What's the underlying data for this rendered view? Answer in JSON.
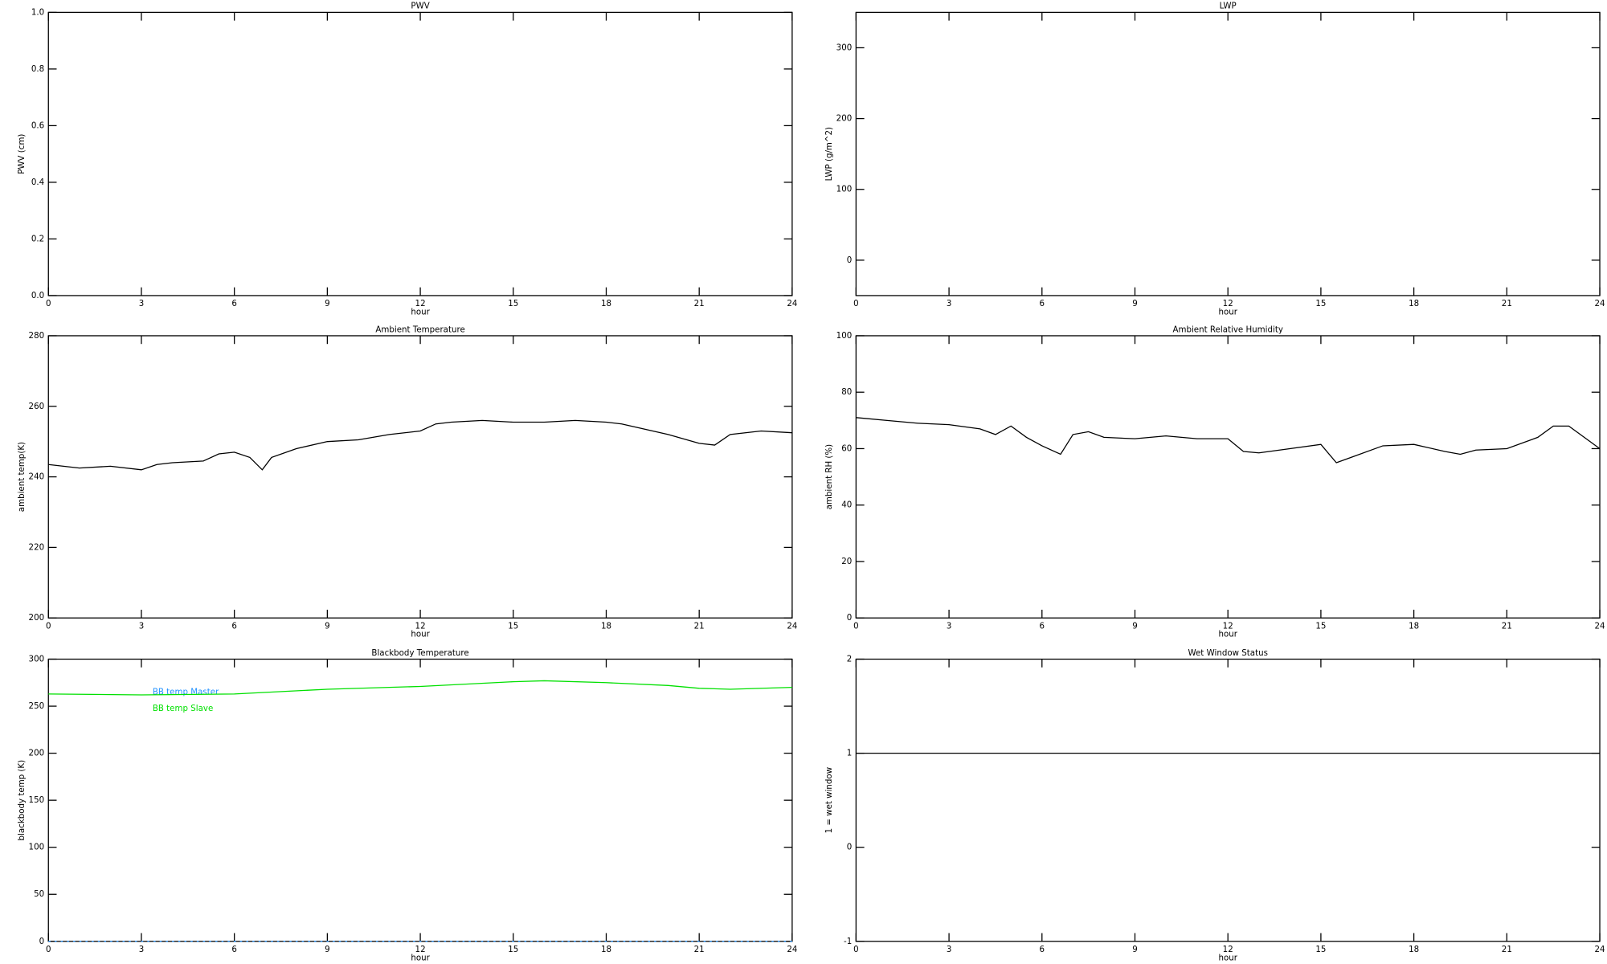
{
  "chart_data": [
    {
      "type": "line",
      "title": "PWV",
      "xlabel": "hour",
      "ylabel": "PWV (cm)",
      "xlim": [
        0,
        24
      ],
      "xticks": [
        0,
        3,
        6,
        9,
        12,
        15,
        18,
        21,
        24
      ],
      "ylim": [
        0,
        1
      ],
      "yticks": [
        {
          "value": 0,
          "label": "0.0"
        },
        {
          "value": 0.2,
          "label": "0.2"
        },
        {
          "value": 0.4,
          "label": "0.4"
        },
        {
          "value": 0.6,
          "label": "0.6"
        },
        {
          "value": 0.8,
          "label": "0.8"
        },
        {
          "value": 1,
          "label": "1.0"
        }
      ],
      "x": [],
      "series": []
    },
    {
      "type": "line",
      "title": "LWP",
      "xlabel": "hour",
      "ylabel": "LWP (g/m^2)",
      "xlim": [
        0,
        24
      ],
      "xticks": [
        0,
        3,
        6,
        9,
        12,
        15,
        18,
        21,
        24
      ],
      "ylim": [
        -50,
        350
      ],
      "yticks": [
        0,
        100,
        200,
        300
      ],
      "x": [],
      "series": []
    },
    {
      "type": "line",
      "title": "Ambient Temperature",
      "xlabel": "hour",
      "ylabel": "ambient temp(K)",
      "xlim": [
        0,
        24
      ],
      "xticks": [
        0,
        3,
        6,
        9,
        12,
        15,
        18,
        21,
        24
      ],
      "ylim": [
        200,
        280
      ],
      "yticks": [
        200,
        220,
        240,
        260,
        280
      ],
      "x": [
        0,
        1,
        2,
        3,
        3.5,
        4,
        5,
        5.5,
        6,
        6.5,
        6.9,
        7.2,
        8,
        9,
        10,
        11,
        12,
        12.5,
        13,
        14,
        15,
        16,
        17,
        18,
        18.5,
        19,
        20,
        21,
        21.5,
        22,
        23,
        24
      ],
      "series": [
        {
          "name": "ambient temp",
          "color": "#000000",
          "values": [
            243.5,
            242.5,
            243,
            242,
            243.5,
            244,
            244.5,
            246.5,
            247,
            245.5,
            242,
            245.5,
            248,
            250,
            250.5,
            252,
            253,
            255,
            255.5,
            256,
            255.5,
            255.5,
            256,
            255.5,
            255,
            254,
            252,
            249.5,
            249,
            252,
            253,
            252.5
          ]
        }
      ]
    },
    {
      "type": "line",
      "title": "Ambient Relative Humidity",
      "xlabel": "hour",
      "ylabel": "ambient RH (%)",
      "xlim": [
        0,
        24
      ],
      "xticks": [
        0,
        3,
        6,
        9,
        12,
        15,
        18,
        21,
        24
      ],
      "ylim": [
        0,
        100
      ],
      "yticks": [
        0,
        20,
        40,
        60,
        80,
        100
      ],
      "x": [
        0,
        1,
        2,
        3,
        4,
        4.5,
        5,
        5.5,
        6,
        6.6,
        7,
        7.5,
        8,
        9,
        10,
        11,
        12,
        12.5,
        13,
        14,
        15,
        15.5,
        16,
        17,
        18,
        19,
        19.5,
        20,
        21,
        22,
        22.5,
        23,
        24
      ],
      "series": [
        {
          "name": "ambient RH",
          "color": "#000000",
          "values": [
            71,
            70,
            69,
            68.5,
            67,
            65,
            68,
            64,
            61,
            58,
            65,
            66,
            64,
            63.5,
            64.5,
            63.5,
            63.5,
            59,
            58.5,
            60,
            61.5,
            55,
            57,
            61,
            61.5,
            59,
            58,
            59.5,
            60,
            64,
            68,
            68,
            60
          ]
        }
      ]
    },
    {
      "type": "line",
      "title": "Blackbody Temperature",
      "xlabel": "hour",
      "ylabel": "blackbody temp (K)",
      "xlim": [
        0,
        24
      ],
      "xticks": [
        0,
        3,
        6,
        9,
        12,
        15,
        18,
        21,
        24
      ],
      "ylim": [
        0,
        300
      ],
      "yticks": [
        0,
        50,
        100,
        150,
        200,
        250,
        300
      ],
      "legend": "upper left",
      "x": [
        0,
        3,
        6,
        9,
        12,
        15,
        16,
        18,
        20,
        21,
        22,
        24
      ],
      "series": [
        {
          "name": "BB temp Master",
          "color": "#1e90ff",
          "values": [
            0,
            0,
            0,
            0,
            0,
            0,
            0,
            0,
            0,
            0,
            0,
            0
          ]
        },
        {
          "name": "BB temp Slave",
          "color": "#00e000",
          "values": [
            263,
            262,
            263,
            268,
            271,
            276,
            277,
            275,
            272,
            269,
            268,
            270
          ]
        }
      ]
    },
    {
      "type": "line",
      "title": "Wet Window Status",
      "xlabel": "hour",
      "ylabel": "1 = wet window",
      "xlim": [
        0,
        24
      ],
      "xticks": [
        0,
        3,
        6,
        9,
        12,
        15,
        18,
        21,
        24
      ],
      "ylim": [
        -1,
        2
      ],
      "yticks": [
        -1,
        0,
        1,
        2
      ],
      "x": [
        0,
        24
      ],
      "series": [
        {
          "name": "wet window",
          "color": "#000000",
          "values": [
            1,
            1
          ]
        }
      ]
    }
  ]
}
